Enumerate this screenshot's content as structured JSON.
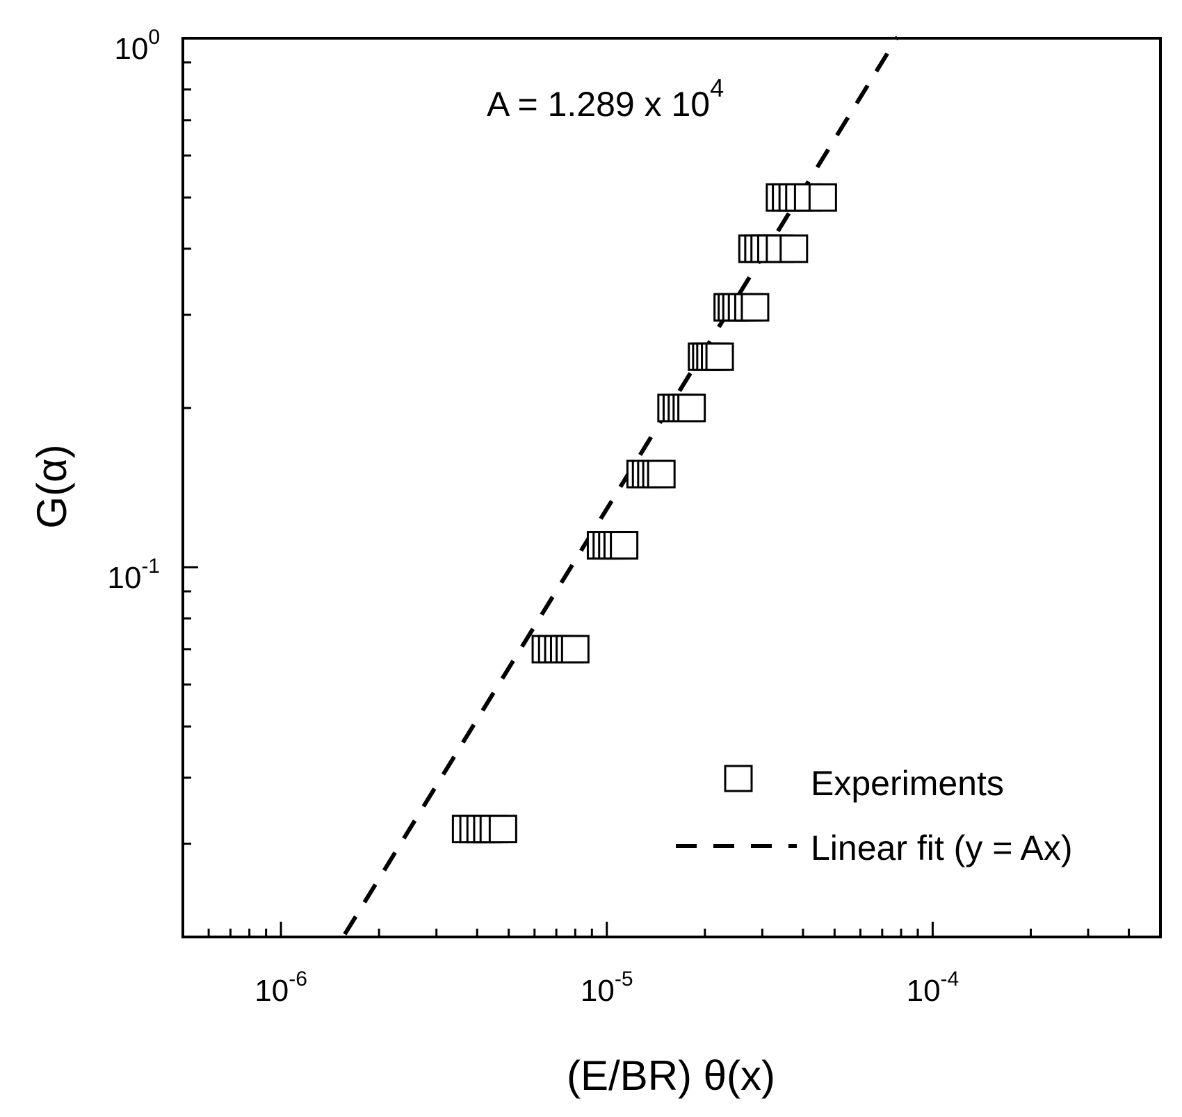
{
  "colors": {
    "axis": "#000000",
    "marker_stroke": "#000000",
    "marker_fill": "#ffffff",
    "fit_line": "#000000",
    "background": "#ffffff"
  },
  "chart_data": {
    "type": "scatter",
    "x_scale": "log",
    "y_scale": "log",
    "xlim": [
      5e-07,
      0.0005
    ],
    "ylim": [
      0.02,
      1
    ],
    "xlabel": "(E/BR) θ(x)",
    "ylabel": "G(α)",
    "grid": false,
    "legend_position": "bottom-right",
    "x_ticks": [
      {
        "value": 1e-06,
        "base": "10",
        "exp": "-6"
      },
      {
        "value": 1e-05,
        "base": "10",
        "exp": "-5"
      },
      {
        "value": 0.0001,
        "base": "10",
        "exp": "-4"
      }
    ],
    "y_ticks": [
      {
        "value": 0.1,
        "base": "10",
        "exp": "-1"
      },
      {
        "value": 1,
        "base": "10",
        "exp": "0"
      }
    ],
    "annotation": {
      "prefix": "A = 1.289 x 10",
      "exp": "4"
    },
    "series": [
      {
        "name": "Experiments",
        "marker": "open-square",
        "points": [
          {
            "y": 0.032,
            "x": [
              3.7e-06,
              3.9e-06,
              4.1e-06,
              4.3e-06,
              4.5e-06,
              4.8e-06
            ]
          },
          {
            "y": 0.07,
            "x": [
              6.5e-06,
              6.8e-06,
              7.1e-06,
              7.4e-06,
              7.7e-06,
              8e-06
            ]
          },
          {
            "y": 0.11,
            "x": [
              9.6e-06,
              1e-05,
              1.04e-05,
              1.08e-05,
              1.13e-05
            ]
          },
          {
            "y": 0.15,
            "x": [
              1.27e-05,
              1.32e-05,
              1.37e-05,
              1.42e-05,
              1.47e-05
            ]
          },
          {
            "y": 0.2,
            "x": [
              1.58e-05,
              1.64e-05,
              1.7e-05,
              1.76e-05,
              1.82e-05
            ]
          },
          {
            "y": 0.25,
            "x": [
              1.96e-05,
              2.02e-05,
              2.08e-05,
              2.15e-05,
              2.22e-05
            ]
          },
          {
            "y": 0.31,
            "x": [
              2.35e-05,
              2.42e-05,
              2.5e-05,
              2.6e-05,
              2.72e-05,
              2.85e-05
            ]
          },
          {
            "y": 0.4,
            "x": [
              2.8e-05,
              2.92e-05,
              3.05e-05,
              3.2e-05,
              3.4e-05,
              3.75e-05
            ]
          },
          {
            "y": 0.5,
            "x": [
              3.4e-05,
              3.55e-05,
              3.72e-05,
              3.9e-05,
              4.15e-05,
              4.6e-05
            ]
          }
        ]
      },
      {
        "name": "Linear fit (y = Ax)",
        "style": "dashed-line",
        "slope": 12890,
        "x_range": [
          1.57e-06,
          7.8e-05
        ]
      }
    ]
  }
}
